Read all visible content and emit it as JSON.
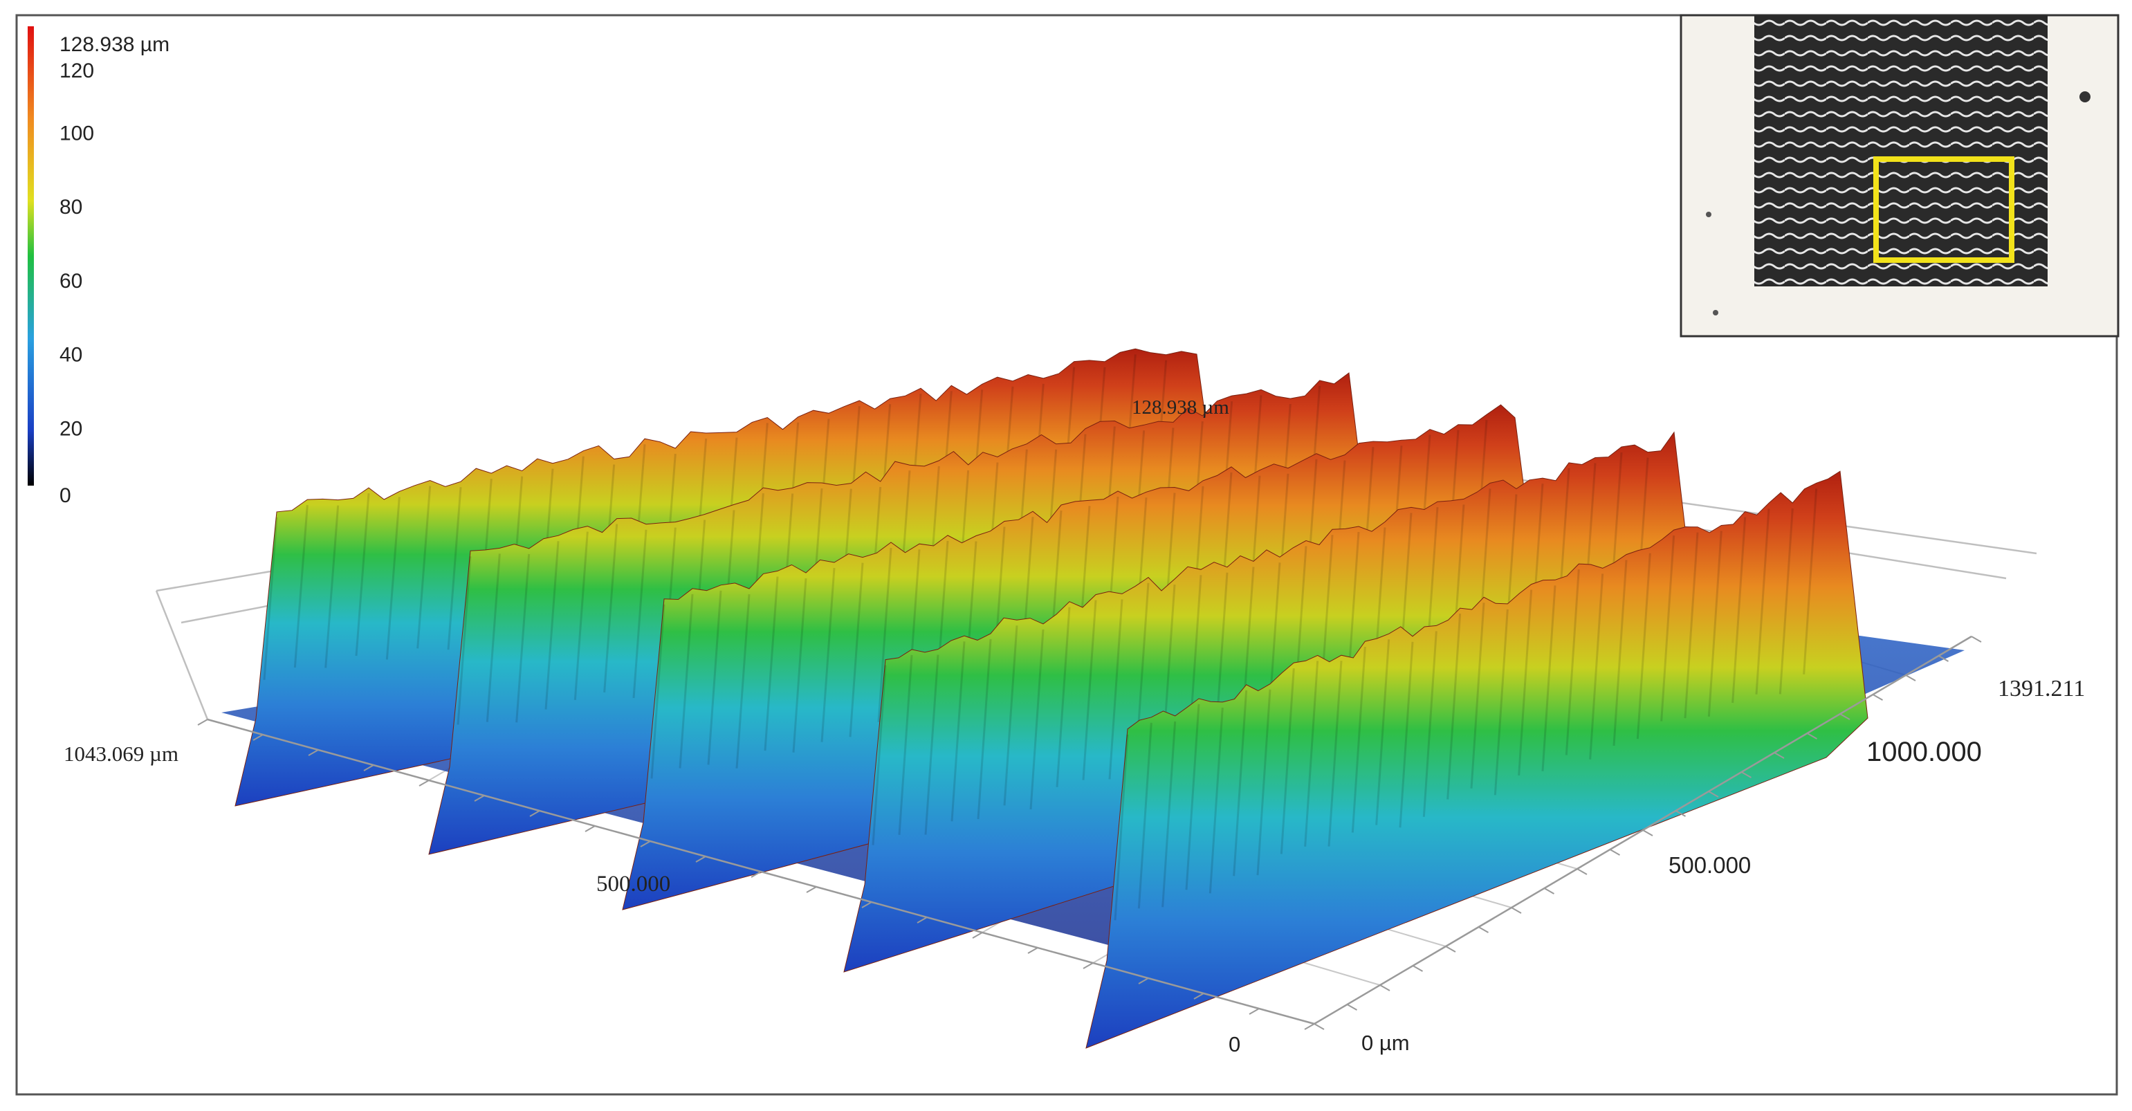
{
  "chart_data": {
    "type": "surface3d",
    "title": "",
    "colorbar": {
      "max_label": "128.938 µm",
      "ticks": [
        "120",
        "100",
        "80",
        "60",
        "40",
        "20",
        "0"
      ],
      "colors": [
        "#000000",
        "#1a3fc4",
        "#2aa0e0",
        "#20c040",
        "#e0e020",
        "#f08a20",
        "#e01010"
      ]
    },
    "axes": {
      "z_max_label": "128.938 µm",
      "x_axis": {
        "max_label": "1043.069 µm",
        "mid_label": "500.000",
        "origin_label": "0"
      },
      "y_axis": {
        "max_label": "1391.211",
        "mid_labels": [
          "1000.000",
          "500.000"
        ],
        "origin_label": "0 µm"
      },
      "z_range": [
        0,
        128.938
      ],
      "x_range": [
        0,
        1043.069
      ],
      "y_range": [
        0,
        1391.211
      ],
      "units": "µm"
    },
    "surface": {
      "ridge_count": 5,
      "ridge_peak_um": 120,
      "valley_um": 10
    },
    "inset": {
      "type": "optical micrograph",
      "highlight_color": "#f2e21a"
    }
  }
}
